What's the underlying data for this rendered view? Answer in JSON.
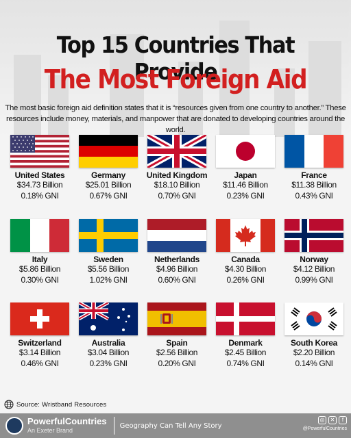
{
  "header": {
    "title_line1": "Top 15 Countries That Provide",
    "title_line2": "The Most Foreign Aid",
    "description": "The most basic foreign aid definition states that it is “resources given from one country to another.” These resources include money, materials, and manpower that are donated to developing countries around the world."
  },
  "countries": [
    {
      "name": "United States",
      "amount": "$34.73 Billion",
      "gni": "0.18% GNI"
    },
    {
      "name": "Germany",
      "amount": "$25.01 Billion",
      "gni": "0.67% GNI"
    },
    {
      "name": "United Kingdom",
      "amount": "$18.10 Billion",
      "gni": "0.70% GNI"
    },
    {
      "name": "Japan",
      "amount": "$11.46 Billion",
      "gni": "0.23% GNI"
    },
    {
      "name": "France",
      "amount": "$11.38 Billion",
      "gni": "0.43% GNI"
    },
    {
      "name": "Italy",
      "amount": "$5.86 Billion",
      "gni": "0.30% GNI"
    },
    {
      "name": "Sweden",
      "amount": "$5.56 Billion",
      "gni": "1.02% GNI"
    },
    {
      "name": "Netherlands",
      "amount": "$4.96 Billion",
      "gni": "0.60% GNI"
    },
    {
      "name": "Canada",
      "amount": "$4.30 Billion",
      "gni": "0.26% GNI"
    },
    {
      "name": "Norway",
      "amount": "$4.12 Billion",
      "gni": "0.99% GNI"
    },
    {
      "name": "Switzerland",
      "amount": "$3.14 Billion",
      "gni": "0.46% GNI"
    },
    {
      "name": "Australia",
      "amount": "$3.04 Billion",
      "gni": "0.23% GNI"
    },
    {
      "name": "Spain",
      "amount": "$2.56 Billion",
      "gni": "0.20% GNI"
    },
    {
      "name": "Denmark",
      "amount": "$2.45 Billion",
      "gni": "0.74% GNI"
    },
    {
      "name": "South Korea",
      "amount": "$2.20 Billion",
      "gni": "0.14% GNI"
    }
  ],
  "source": {
    "text": "Source: Wristband Resources"
  },
  "footer": {
    "brand": "PowerfulCountries",
    "sub": "An Exeter Brand",
    "tagline": "Geography Can Tell Any Story",
    "handle": "@PowerfulCountries"
  },
  "colors": {
    "title_red": "#d21f1f",
    "footer_bg": "#8f8f8f"
  }
}
